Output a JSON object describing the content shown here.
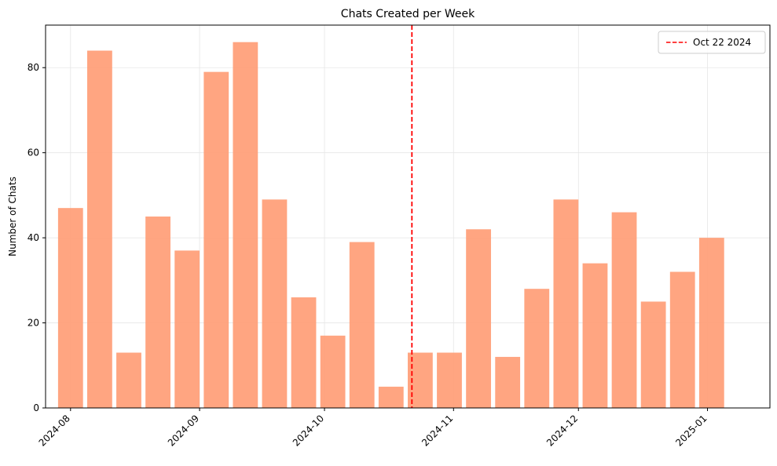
{
  "chart_data": {
    "type": "bar",
    "title": "Chats Created per Week",
    "xlabel": "",
    "ylabel": "Number of Chats",
    "x_type": "date",
    "x": [
      "2024-08-01",
      "2024-08-08",
      "2024-08-15",
      "2024-08-22",
      "2024-08-29",
      "2024-09-05",
      "2024-09-12",
      "2024-09-19",
      "2024-09-26",
      "2024-10-03",
      "2024-10-10",
      "2024-10-17",
      "2024-10-24",
      "2024-10-31",
      "2024-11-07",
      "2024-11-14",
      "2024-11-21",
      "2024-11-28",
      "2024-12-05",
      "2024-12-12",
      "2024-12-19",
      "2024-12-26",
      "2025-01-02"
    ],
    "values": [
      47,
      84,
      13,
      45,
      37,
      79,
      86,
      49,
      26,
      17,
      39,
      5,
      13,
      13,
      42,
      12,
      28,
      49,
      34,
      46,
      25,
      32,
      40
    ],
    "xlim": [
      "2024-07-26",
      "2025-01-16"
    ],
    "ylim": [
      0,
      90
    ],
    "x_ticks": [
      {
        "date": "2024-08-01",
        "label": "2024-08"
      },
      {
        "date": "2024-09-01",
        "label": "2024-09"
      },
      {
        "date": "2024-10-01",
        "label": "2024-10"
      },
      {
        "date": "2024-11-01",
        "label": "2024-11"
      },
      {
        "date": "2024-12-01",
        "label": "2024-12"
      },
      {
        "date": "2025-01-01",
        "label": "2025-01"
      }
    ],
    "y_ticks": [
      0,
      20,
      40,
      60,
      80
    ],
    "bar_color": "#ffa07a",
    "grid": true,
    "reference_line": {
      "date": "2024-10-22",
      "label": "Oct 22 2024",
      "color": "#ff0000",
      "style": "dashed"
    },
    "legend_position": "top-right"
  }
}
